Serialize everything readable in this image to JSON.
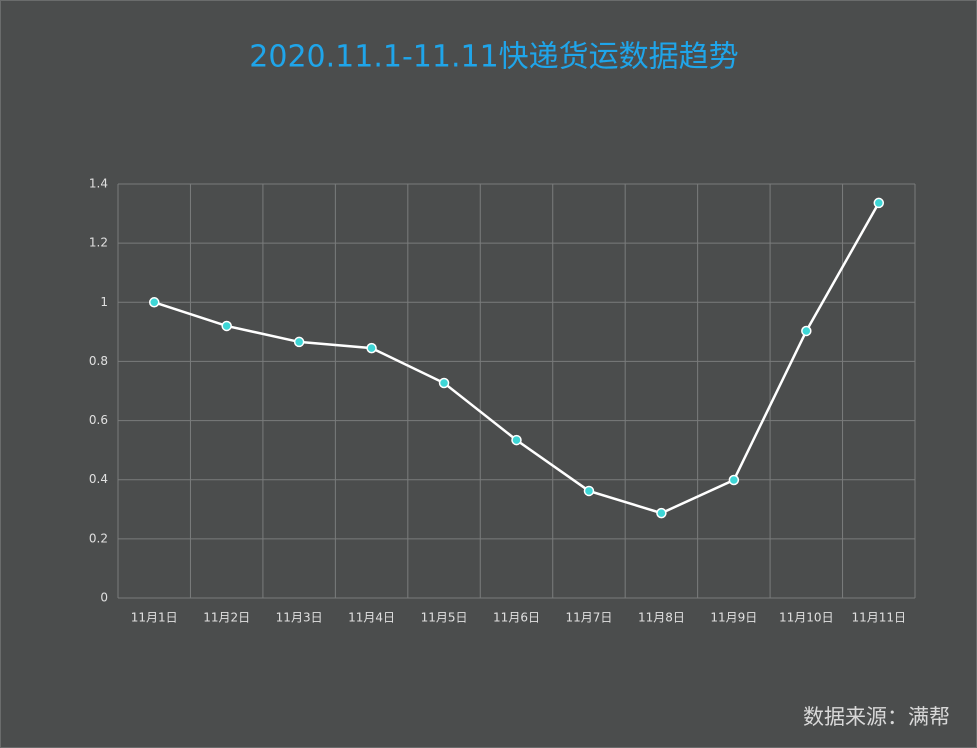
{
  "chart_data": {
    "type": "line",
    "title": "2020.11.1-11.11快递货运数据趋势",
    "categories": [
      "11月1日",
      "11月2日",
      "11月3日",
      "11月4日",
      "11月5日",
      "11月6日",
      "11月7日",
      "11月8日",
      "11月9日",
      "11月10日",
      "11月11日"
    ],
    "values": [
      1.0,
      0.92,
      0.866,
      0.845,
      0.727,
      0.534,
      0.362,
      0.287,
      0.399,
      0.903,
      1.336
    ],
    "color": "#ffffff",
    "marker_color": "#3ed6d6",
    "ylim": [
      0,
      1.4
    ],
    "yticks": [
      0,
      0.2,
      0.4,
      0.6,
      0.8,
      1,
      1.2,
      1.4
    ],
    "grid": true,
    "source": "数据来源：满帮"
  }
}
